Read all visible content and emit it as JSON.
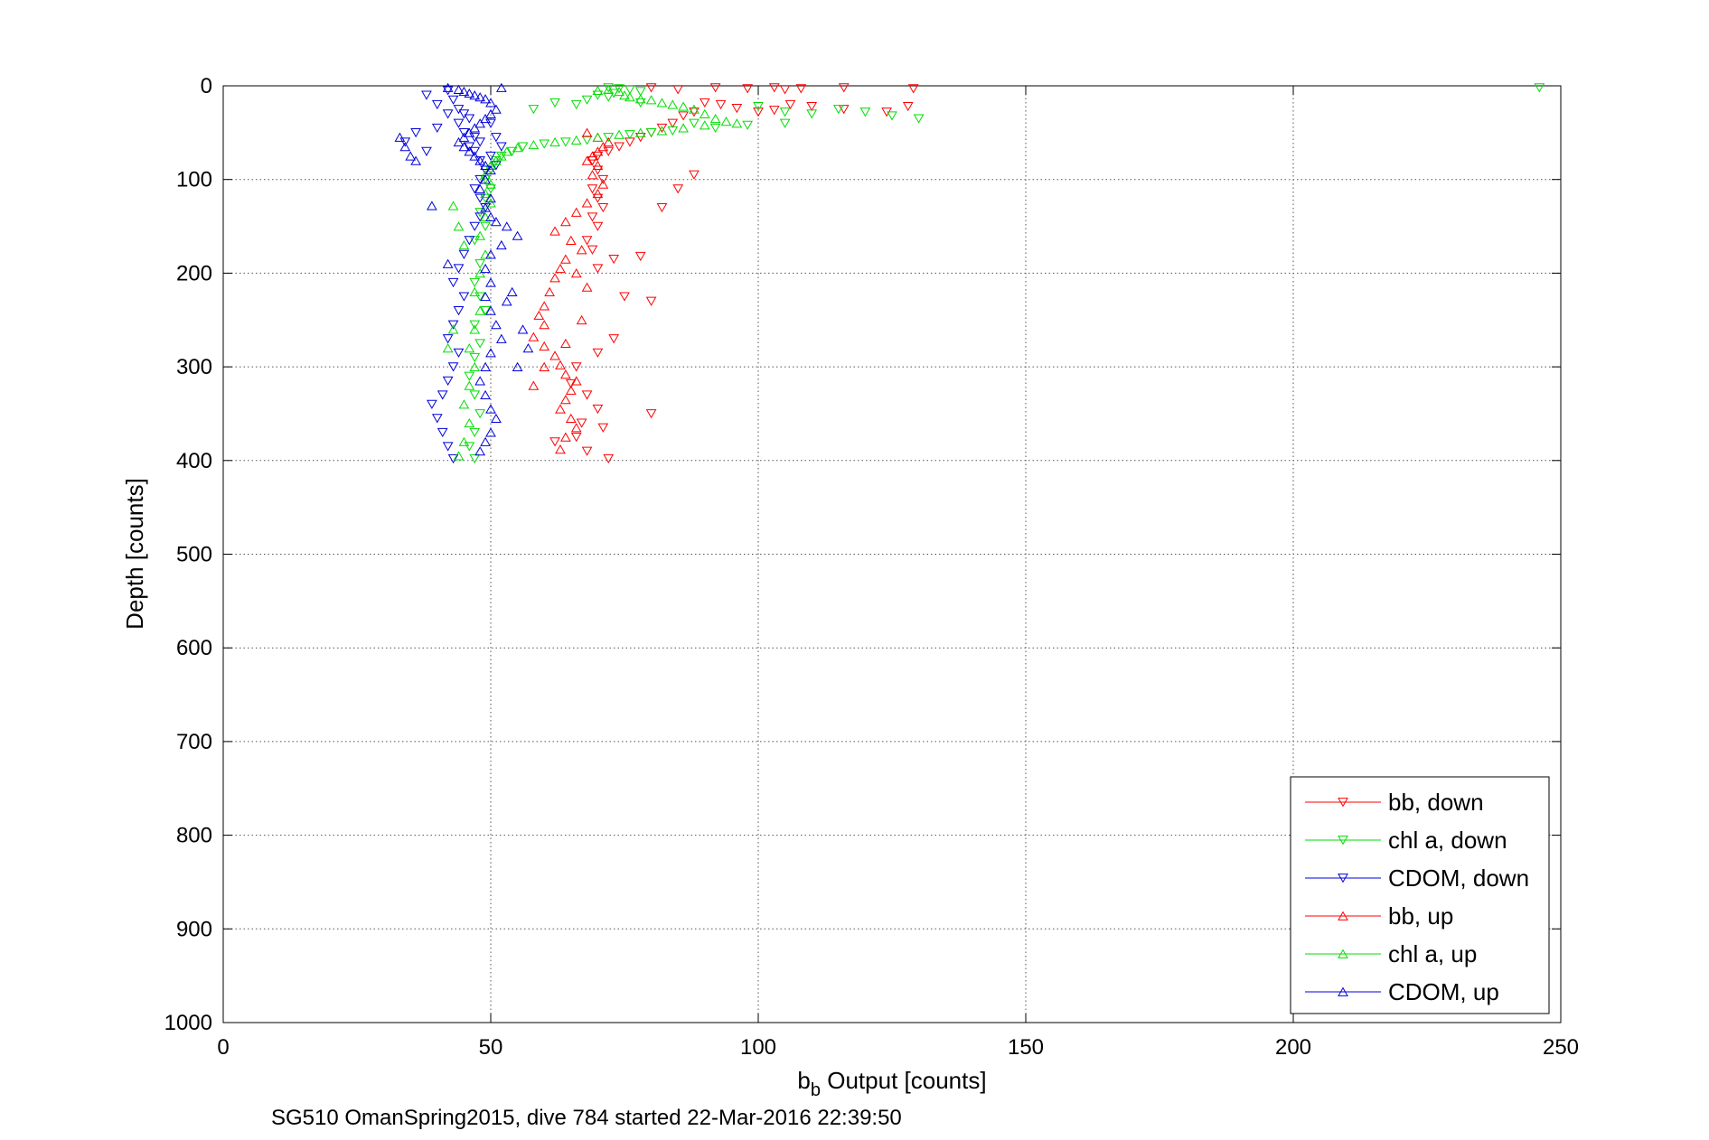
{
  "chart_data": {
    "type": "scatter",
    "title": "",
    "xlabel_main": "b",
    "xlabel_sub": "b",
    "xlabel_rest": " Output [counts]",
    "ylabel": "Depth [counts]",
    "footer": "SG510 OmanSpring2015, dive 784 started 22-Mar-2016 22:39:50",
    "xlim": [
      0,
      250
    ],
    "ylim": [
      0,
      1000
    ],
    "y_reversed": true,
    "grid": true,
    "legend_position": "bottom-right",
    "x_ticks": [
      "0",
      "50",
      "100",
      "150",
      "200",
      "250"
    ],
    "y_ticks": [
      "0",
      "100",
      "200",
      "300",
      "400",
      "500",
      "600",
      "700",
      "800",
      "900",
      "1000"
    ],
    "series": [
      {
        "name": "bb, down",
        "color": "#ff0000",
        "marker": "triangle-down",
        "points": [
          [
            80,
            2
          ],
          [
            85,
            4
          ],
          [
            92,
            2
          ],
          [
            98,
            3
          ],
          [
            103,
            2
          ],
          [
            105,
            4
          ],
          [
            108,
            3
          ],
          [
            116,
            2
          ],
          [
            129,
            3
          ],
          [
            128,
            22
          ],
          [
            124,
            28
          ],
          [
            116,
            25
          ],
          [
            110,
            22
          ],
          [
            106,
            20
          ],
          [
            103,
            26
          ],
          [
            100,
            28
          ],
          [
            96,
            24
          ],
          [
            93,
            20
          ],
          [
            90,
            18
          ],
          [
            88,
            28
          ],
          [
            86,
            32
          ],
          [
            84,
            40
          ],
          [
            82,
            45
          ],
          [
            80,
            50
          ],
          [
            78,
            55
          ],
          [
            76,
            60
          ],
          [
            74,
            65
          ],
          [
            72,
            70
          ],
          [
            70,
            75
          ],
          [
            69,
            80
          ],
          [
            70,
            90
          ],
          [
            71,
            100
          ],
          [
            69,
            110
          ],
          [
            70,
            120
          ],
          [
            71,
            130
          ],
          [
            69,
            140
          ],
          [
            70,
            150
          ],
          [
            68,
            165
          ],
          [
            69,
            175
          ],
          [
            73,
            185
          ],
          [
            70,
            195
          ],
          [
            78,
            182
          ],
          [
            75,
            225
          ],
          [
            80,
            230
          ],
          [
            73,
            270
          ],
          [
            70,
            285
          ],
          [
            66,
            300
          ],
          [
            65,
            318
          ],
          [
            68,
            330
          ],
          [
            70,
            345
          ],
          [
            67,
            360
          ],
          [
            66,
            375
          ],
          [
            62,
            380
          ],
          [
            68,
            390
          ],
          [
            72,
            398
          ],
          [
            80,
            350
          ],
          [
            71,
            365
          ],
          [
            88,
            95
          ],
          [
            85,
            110
          ],
          [
            82,
            130
          ]
        ]
      },
      {
        "name": "chl a, down",
        "color": "#00dd00",
        "marker": "triangle-down",
        "points": [
          [
            72,
            2
          ],
          [
            74,
            3
          ],
          [
            76,
            4
          ],
          [
            78,
            6
          ],
          [
            73,
            8
          ],
          [
            70,
            10
          ],
          [
            68,
            15
          ],
          [
            72,
            12
          ],
          [
            78,
            18
          ],
          [
            100,
            22
          ],
          [
            105,
            28
          ],
          [
            110,
            30
          ],
          [
            115,
            25
          ],
          [
            120,
            28
          ],
          [
            125,
            32
          ],
          [
            130,
            35
          ],
          [
            105,
            40
          ],
          [
            98,
            42
          ],
          [
            92,
            45
          ],
          [
            88,
            40
          ],
          [
            84,
            48
          ],
          [
            80,
            50
          ],
          [
            76,
            52
          ],
          [
            72,
            55
          ],
          [
            68,
            58
          ],
          [
            64,
            60
          ],
          [
            60,
            62
          ],
          [
            56,
            65
          ],
          [
            54,
            70
          ],
          [
            52,
            75
          ],
          [
            51,
            80
          ],
          [
            50,
            90
          ],
          [
            49,
            100
          ],
          [
            50,
            110
          ],
          [
            49,
            120
          ],
          [
            48,
            135
          ],
          [
            49,
            150
          ],
          [
            47,
            165
          ],
          [
            48,
            190
          ],
          [
            47,
            210
          ],
          [
            48,
            225
          ],
          [
            49,
            240
          ],
          [
            47,
            255
          ],
          [
            48,
            275
          ],
          [
            47,
            290
          ],
          [
            46,
            310
          ],
          [
            47,
            330
          ],
          [
            48,
            350
          ],
          [
            47,
            370
          ],
          [
            46,
            385
          ],
          [
            47,
            398
          ],
          [
            58,
            25
          ],
          [
            62,
            18
          ],
          [
            66,
            20
          ],
          [
            246,
            2
          ]
        ]
      },
      {
        "name": "CDOM, down",
        "color": "#0000dd",
        "marker": "triangle-down",
        "points": [
          [
            38,
            10
          ],
          [
            40,
            20
          ],
          [
            42,
            5
          ],
          [
            43,
            15
          ],
          [
            44,
            25
          ],
          [
            45,
            30
          ],
          [
            44,
            40
          ],
          [
            46,
            35
          ],
          [
            45,
            50
          ],
          [
            47,
            55
          ],
          [
            48,
            60
          ],
          [
            46,
            65
          ],
          [
            47,
            70
          ],
          [
            48,
            80
          ],
          [
            49,
            90
          ],
          [
            48,
            100
          ],
          [
            47,
            110
          ],
          [
            48,
            120
          ],
          [
            49,
            130
          ],
          [
            48,
            140
          ],
          [
            47,
            150
          ],
          [
            46,
            165
          ],
          [
            45,
            180
          ],
          [
            44,
            195
          ],
          [
            43,
            210
          ],
          [
            45,
            225
          ],
          [
            44,
            240
          ],
          [
            43,
            255
          ],
          [
            42,
            270
          ],
          [
            44,
            285
          ],
          [
            43,
            300
          ],
          [
            42,
            315
          ],
          [
            41,
            330
          ],
          [
            39,
            340
          ],
          [
            40,
            355
          ],
          [
            41,
            370
          ],
          [
            42,
            385
          ],
          [
            43,
            398
          ],
          [
            34,
            60
          ],
          [
            36,
            50
          ],
          [
            38,
            70
          ],
          [
            40,
            45
          ],
          [
            42,
            30
          ],
          [
            50,
            40
          ],
          [
            51,
            55
          ],
          [
            52,
            65
          ],
          [
            50,
            75
          ],
          [
            51,
            85
          ]
        ]
      },
      {
        "name": "bb, up",
        "color": "#ff0000",
        "marker": "triangle-up",
        "points": [
          [
            68,
            50
          ],
          [
            70,
            55
          ],
          [
            72,
            60
          ],
          [
            71,
            65
          ],
          [
            70,
            70
          ],
          [
            69,
            75
          ],
          [
            68,
            80
          ],
          [
            70,
            85
          ],
          [
            69,
            95
          ],
          [
            71,
            105
          ],
          [
            70,
            115
          ],
          [
            68,
            125
          ],
          [
            66,
            135
          ],
          [
            64,
            145
          ],
          [
            62,
            155
          ],
          [
            65,
            165
          ],
          [
            67,
            175
          ],
          [
            64,
            185
          ],
          [
            63,
            195
          ],
          [
            62,
            205
          ],
          [
            61,
            220
          ],
          [
            60,
            235
          ],
          [
            59,
            245
          ],
          [
            60,
            255
          ],
          [
            58,
            268
          ],
          [
            60,
            278
          ],
          [
            62,
            288
          ],
          [
            63,
            298
          ],
          [
            64,
            308
          ],
          [
            66,
            315
          ],
          [
            65,
            325
          ],
          [
            64,
            335
          ],
          [
            63,
            345
          ],
          [
            65,
            355
          ],
          [
            66,
            365
          ],
          [
            64,
            375
          ],
          [
            63,
            388
          ],
          [
            60,
            300
          ],
          [
            58,
            320
          ],
          [
            66,
            200
          ],
          [
            68,
            215
          ],
          [
            67,
            250
          ],
          [
            64,
            275
          ]
        ]
      },
      {
        "name": "chl a, up",
        "color": "#00dd00",
        "marker": "triangle-up",
        "points": [
          [
            70,
            5
          ],
          [
            72,
            4
          ],
          [
            74,
            6
          ],
          [
            75,
            10
          ],
          [
            76,
            12
          ],
          [
            78,
            14
          ],
          [
            80,
            15
          ],
          [
            82,
            18
          ],
          [
            84,
            20
          ],
          [
            86,
            22
          ],
          [
            88,
            25
          ],
          [
            90,
            30
          ],
          [
            92,
            35
          ],
          [
            94,
            38
          ],
          [
            96,
            40
          ],
          [
            90,
            42
          ],
          [
            86,
            45
          ],
          [
            82,
            48
          ],
          [
            78,
            50
          ],
          [
            74,
            52
          ],
          [
            70,
            55
          ],
          [
            66,
            58
          ],
          [
            62,
            60
          ],
          [
            58,
            63
          ],
          [
            55,
            66
          ],
          [
            53,
            70
          ],
          [
            52,
            75
          ],
          [
            51,
            80
          ],
          [
            50,
            85
          ],
          [
            49,
            95
          ],
          [
            50,
            105
          ],
          [
            49,
            115
          ],
          [
            50,
            125
          ],
          [
            49,
            140
          ],
          [
            48,
            160
          ],
          [
            49,
            180
          ],
          [
            48,
            200
          ],
          [
            47,
            220
          ],
          [
            48,
            240
          ],
          [
            47,
            260
          ],
          [
            46,
            280
          ],
          [
            47,
            300
          ],
          [
            46,
            320
          ],
          [
            45,
            340
          ],
          [
            46,
            360
          ],
          [
            45,
            380
          ],
          [
            44,
            395
          ],
          [
            43,
            128
          ],
          [
            44,
            150
          ],
          [
            45,
            170
          ],
          [
            43,
            260
          ],
          [
            42,
            280
          ]
        ]
      },
      {
        "name": "CDOM, up",
        "color": "#0000dd",
        "marker": "triangle-up",
        "points": [
          [
            42,
            2
          ],
          [
            44,
            4
          ],
          [
            45,
            6
          ],
          [
            46,
            8
          ],
          [
            47,
            10
          ],
          [
            48,
            12
          ],
          [
            49,
            14
          ],
          [
            50,
            18
          ],
          [
            52,
            2
          ],
          [
            51,
            25
          ],
          [
            50,
            30
          ],
          [
            49,
            35
          ],
          [
            48,
            40
          ],
          [
            47,
            45
          ],
          [
            46,
            50
          ],
          [
            45,
            55
          ],
          [
            44,
            60
          ],
          [
            45,
            65
          ],
          [
            46,
            70
          ],
          [
            47,
            75
          ],
          [
            48,
            80
          ],
          [
            49,
            85
          ],
          [
            50,
            90
          ],
          [
            49,
            100
          ],
          [
            48,
            110
          ],
          [
            50,
            120
          ],
          [
            49,
            130
          ],
          [
            50,
            140
          ],
          [
            51,
            145
          ],
          [
            53,
            150
          ],
          [
            55,
            160
          ],
          [
            52,
            170
          ],
          [
            50,
            180
          ],
          [
            49,
            195
          ],
          [
            50,
            210
          ],
          [
            49,
            225
          ],
          [
            50,
            240
          ],
          [
            51,
            255
          ],
          [
            52,
            270
          ],
          [
            50,
            285
          ],
          [
            49,
            300
          ],
          [
            48,
            315
          ],
          [
            49,
            330
          ],
          [
            50,
            345
          ],
          [
            51,
            355
          ],
          [
            50,
            370
          ],
          [
            49,
            380
          ],
          [
            48,
            390
          ],
          [
            39,
            128
          ],
          [
            42,
            190
          ],
          [
            34,
            65
          ],
          [
            33,
            55
          ],
          [
            35,
            75
          ],
          [
            36,
            80
          ],
          [
            56,
            260
          ],
          [
            57,
            280
          ],
          [
            55,
            300
          ],
          [
            54,
            220
          ],
          [
            53,
            230
          ]
        ]
      }
    ]
  }
}
